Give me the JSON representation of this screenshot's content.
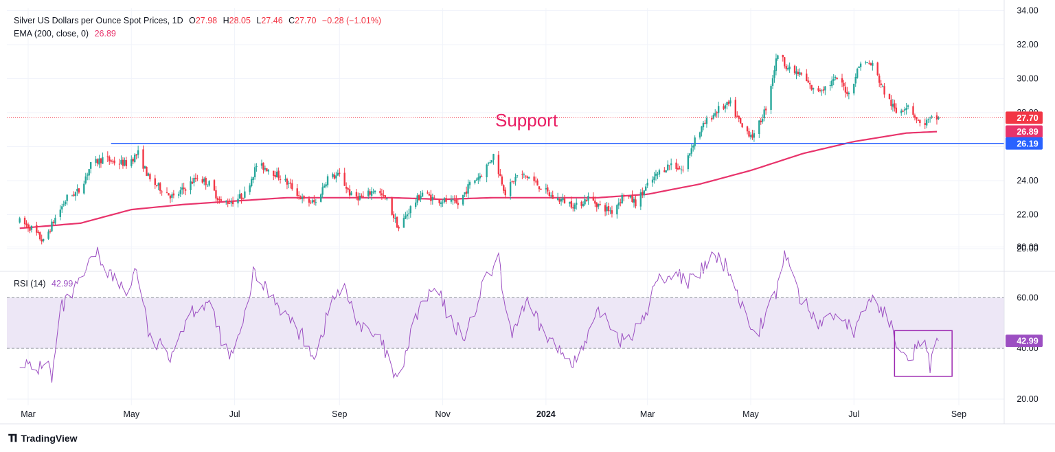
{
  "header": {
    "symbol": "Silver US Dollars per Ounce Spot Prices, 1D",
    "open_label": "O",
    "open": "27.98",
    "high_label": "H",
    "high": "28.05",
    "low_label": "L",
    "low": "27.46",
    "close_label": "C",
    "close": "27.70",
    "change": "−0.28 (−1.01%)"
  },
  "ema_legend": {
    "label": "EMA (200, close, 0)",
    "value": "26.89"
  },
  "rsi_legend": {
    "label": "RSI (14)",
    "value": "42.99"
  },
  "brand": {
    "name": "TradingView"
  },
  "colors": {
    "up": "#26a69a",
    "down": "#f23645",
    "ema": "#e8336b",
    "support": "#2962ff",
    "rsi": "#9c4fc2",
    "rsi_band": "#ede7f6",
    "annotation": "#e91e63"
  },
  "chart_data": [
    {
      "type": "candlestick",
      "title": "Silver US Dollars per Ounce Spot Prices, 1D",
      "x_tick_labels": [
        "Mar",
        "May",
        "Jul",
        "Sep",
        "Nov",
        "2024",
        "Mar",
        "May",
        "Jul",
        "Sep"
      ],
      "y_tick_labels": [
        "34.00",
        "32.00",
        "30.00",
        "28.00",
        "24.00",
        "22.00",
        "20.00"
      ],
      "ylim": [
        19,
        34
      ],
      "grid": true,
      "last_price": 27.7,
      "price_labels": [
        {
          "name": "last",
          "value": "27.70"
        },
        {
          "name": "ema",
          "value": "26.89"
        },
        {
          "name": "support",
          "value": "26.19"
        }
      ],
      "support_level": 26.19,
      "annotation": "Support",
      "ema_period": 200,
      "ema_last": 26.89,
      "ohlc_path": [
        [
          "2023-02-24",
          21.6
        ],
        [
          "2023-03-03",
          21.2
        ],
        [
          "2023-03-10",
          20.4
        ],
        [
          "2023-03-17",
          21.8
        ],
        [
          "2023-03-24",
          23.0
        ],
        [
          "2023-03-31",
          23.4
        ],
        [
          "2023-04-07",
          24.9
        ],
        [
          "2023-04-14",
          25.3
        ],
        [
          "2023-04-21",
          25.1
        ],
        [
          "2023-04-28",
          25.0
        ],
        [
          "2023-05-05",
          25.6
        ],
        [
          "2023-05-12",
          24.0
        ],
        [
          "2023-05-19",
          23.5
        ],
        [
          "2023-05-26",
          23.0
        ],
        [
          "2023-06-02",
          23.6
        ],
        [
          "2023-06-09",
          24.2
        ],
        [
          "2023-06-16",
          23.8
        ],
        [
          "2023-06-23",
          22.7
        ],
        [
          "2023-06-30",
          22.8
        ],
        [
          "2023-07-07",
          23.2
        ],
        [
          "2023-07-14",
          24.9
        ],
        [
          "2023-07-21",
          24.7
        ],
        [
          "2023-07-28",
          24.2
        ],
        [
          "2023-08-04",
          23.6
        ],
        [
          "2023-08-11",
          22.8
        ],
        [
          "2023-08-18",
          22.7
        ],
        [
          "2023-08-25",
          24.2
        ],
        [
          "2023-09-01",
          24.3
        ],
        [
          "2023-09-08",
          23.1
        ],
        [
          "2023-09-15",
          23.0
        ],
        [
          "2023-09-22",
          23.5
        ],
        [
          "2023-09-29",
          22.8
        ],
        [
          "2023-10-06",
          21.2
        ],
        [
          "2023-10-13",
          22.4
        ],
        [
          "2023-10-20",
          23.3
        ],
        [
          "2023-10-27",
          22.9
        ],
        [
          "2023-11-03",
          22.8
        ],
        [
          "2023-11-10",
          22.6
        ],
        [
          "2023-11-17",
          23.8
        ],
        [
          "2023-11-24",
          24.4
        ],
        [
          "2023-12-01",
          25.5
        ],
        [
          "2023-12-08",
          23.3
        ],
        [
          "2023-12-15",
          24.3
        ],
        [
          "2023-12-22",
          24.2
        ],
        [
          "2023-12-29",
          23.6
        ],
        [
          "2024-01-05",
          23.0
        ],
        [
          "2024-01-12",
          22.8
        ],
        [
          "2024-01-19",
          22.5
        ],
        [
          "2024-01-26",
          23.0
        ],
        [
          "2024-02-02",
          22.5
        ],
        [
          "2024-02-09",
          22.2
        ],
        [
          "2024-02-16",
          23.2
        ],
        [
          "2024-02-23",
          22.7
        ],
        [
          "2024-03-01",
          23.7
        ],
        [
          "2024-03-08",
          24.5
        ],
        [
          "2024-03-15",
          25.0
        ],
        [
          "2024-03-22",
          24.6
        ],
        [
          "2024-03-29",
          26.5
        ],
        [
          "2024-04-05",
          27.5
        ],
        [
          "2024-04-12",
          28.2
        ],
        [
          "2024-04-19",
          28.5
        ],
        [
          "2024-04-26",
          27.1
        ],
        [
          "2024-05-03",
          26.6
        ],
        [
          "2024-05-10",
          28.3
        ],
        [
          "2024-05-17",
          31.5
        ],
        [
          "2024-05-24",
          30.5
        ],
        [
          "2024-05-31",
          30.2
        ],
        [
          "2024-06-07",
          29.3
        ],
        [
          "2024-06-14",
          29.5
        ],
        [
          "2024-06-21",
          30.0
        ],
        [
          "2024-06-28",
          29.1
        ],
        [
          "2024-07-05",
          31.0
        ],
        [
          "2024-07-12",
          30.8
        ],
        [
          "2024-07-19",
          29.2
        ],
        [
          "2024-07-26",
          28.0
        ],
        [
          "2024-08-02",
          28.5
        ],
        [
          "2024-08-09",
          27.3
        ],
        [
          "2024-08-16",
          27.6
        ],
        [
          "2024-08-20",
          27.7
        ]
      ],
      "ema_path": [
        [
          "2023-02-24",
          21.2
        ],
        [
          "2023-04-01",
          21.5
        ],
        [
          "2023-05-01",
          22.3
        ],
        [
          "2023-06-01",
          22.6
        ],
        [
          "2023-07-01",
          22.8
        ],
        [
          "2023-08-01",
          23.0
        ],
        [
          "2023-09-01",
          23.0
        ],
        [
          "2023-10-01",
          23.0
        ],
        [
          "2023-11-01",
          22.9
        ],
        [
          "2023-12-01",
          23.0
        ],
        [
          "2024-01-01",
          23.0
        ],
        [
          "2024-02-01",
          23.0
        ],
        [
          "2024-03-01",
          23.2
        ],
        [
          "2024-04-01",
          23.8
        ],
        [
          "2024-05-01",
          24.6
        ],
        [
          "2024-06-01",
          25.6
        ],
        [
          "2024-07-01",
          26.3
        ],
        [
          "2024-08-01",
          26.8
        ],
        [
          "2024-08-20",
          26.89
        ]
      ]
    },
    {
      "type": "line",
      "title": "RSI (14)",
      "y_tick_labels": [
        "80.00",
        "60.00",
        "40.00",
        "20.00"
      ],
      "ylim": [
        15,
        85
      ],
      "band": [
        40,
        60
      ],
      "last": 42.99,
      "highlight_box": {
        "x_range": [
          "2024-07-25",
          "2024-08-28"
        ],
        "y_range": [
          29,
          47
        ]
      },
      "series_path": [
        [
          "2023-02-24",
          36
        ],
        [
          "2023-03-05",
          30
        ],
        [
          "2023-03-12",
          37
        ],
        [
          "2023-03-15",
          27
        ],
        [
          "2023-03-20",
          55
        ],
        [
          "2023-04-01",
          66
        ],
        [
          "2023-04-10",
          78
        ],
        [
          "2023-04-20",
          68
        ],
        [
          "2023-04-28",
          62
        ],
        [
          "2023-05-04",
          72
        ],
        [
          "2023-05-12",
          43
        ],
        [
          "2023-05-24",
          38
        ],
        [
          "2023-06-05",
          55
        ],
        [
          "2023-06-15",
          58
        ],
        [
          "2023-06-28",
          36
        ],
        [
          "2023-07-05",
          46
        ],
        [
          "2023-07-12",
          69
        ],
        [
          "2023-07-22",
          62
        ],
        [
          "2023-08-04",
          50
        ],
        [
          "2023-08-18",
          37
        ],
        [
          "2023-08-28",
          60
        ],
        [
          "2023-09-04",
          63
        ],
        [
          "2023-09-14",
          48
        ],
        [
          "2023-09-26",
          42
        ],
        [
          "2023-10-05",
          26
        ],
        [
          "2023-10-18",
          56
        ],
        [
          "2023-10-28",
          64
        ],
        [
          "2023-11-06",
          50
        ],
        [
          "2023-11-15",
          45
        ],
        [
          "2023-11-25",
          65
        ],
        [
          "2023-12-04",
          75
        ],
        [
          "2023-12-10",
          44
        ],
        [
          "2023-12-20",
          58
        ],
        [
          "2023-12-29",
          48
        ],
        [
          "2024-01-10",
          38
        ],
        [
          "2024-01-20",
          35
        ],
        [
          "2024-02-02",
          55
        ],
        [
          "2024-02-14",
          44
        ],
        [
          "2024-02-26",
          48
        ],
        [
          "2024-03-06",
          66
        ],
        [
          "2024-03-16",
          70
        ],
        [
          "2024-03-28",
          66
        ],
        [
          "2024-04-08",
          76
        ],
        [
          "2024-04-18",
          72
        ],
        [
          "2024-04-28",
          52
        ],
        [
          "2024-05-06",
          48
        ],
        [
          "2024-05-16",
          62
        ],
        [
          "2024-05-22",
          78
        ],
        [
          "2024-05-30",
          60
        ],
        [
          "2024-06-10",
          50
        ],
        [
          "2024-06-22",
          54
        ],
        [
          "2024-07-02",
          46
        ],
        [
          "2024-07-10",
          60
        ],
        [
          "2024-07-18",
          55
        ],
        [
          "2024-07-26",
          44
        ],
        [
          "2024-08-04",
          37
        ],
        [
          "2024-08-10",
          45
        ],
        [
          "2024-08-15",
          33
        ],
        [
          "2024-08-20",
          42.99
        ]
      ]
    }
  ]
}
